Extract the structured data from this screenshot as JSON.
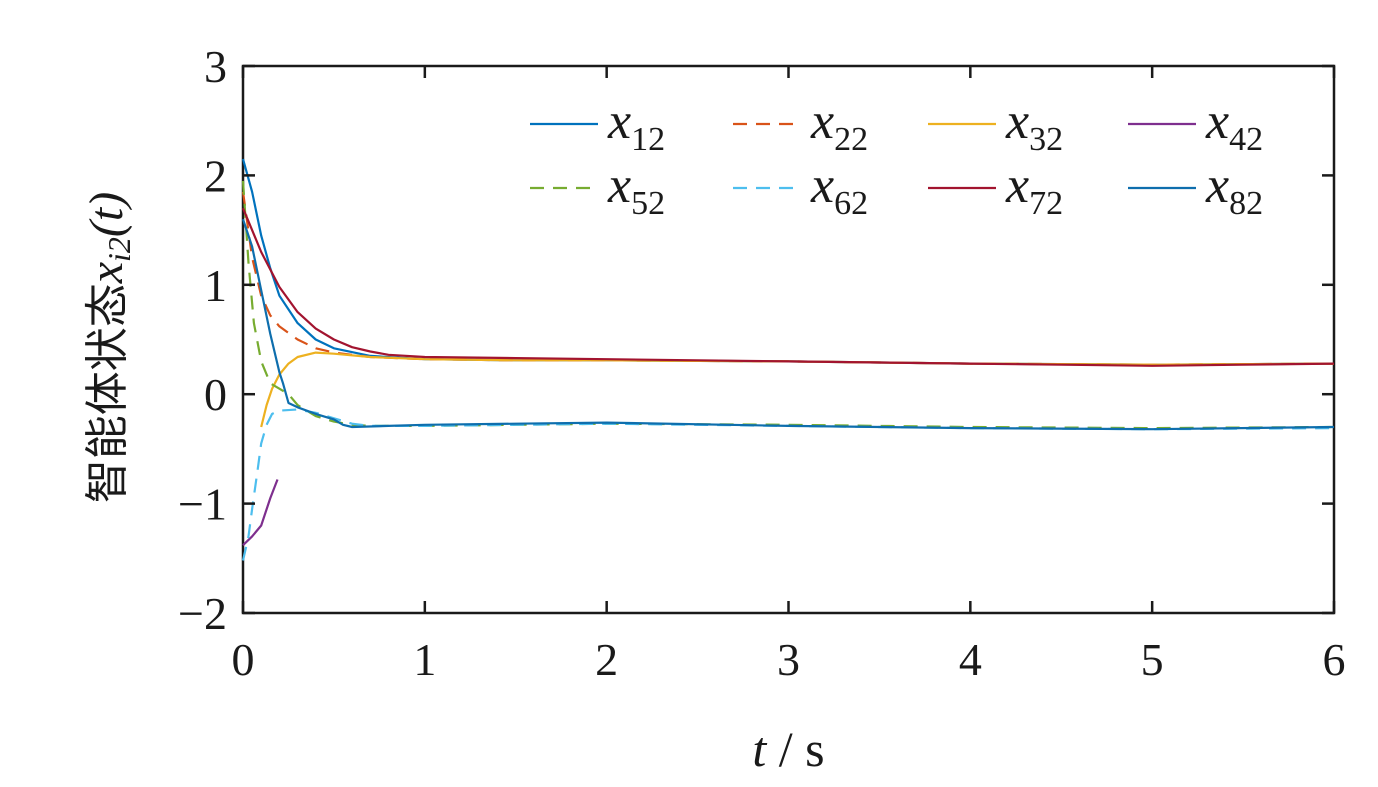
{
  "chart_data": {
    "type": "line",
    "xlabel": {
      "var": "t",
      "unit": "s"
    },
    "ylabel": {
      "prefix": "智能体状态",
      "var": "x",
      "sub": "i2",
      "arg": "(t)"
    },
    "xlim": [
      0,
      6
    ],
    "ylim": [
      -2,
      3
    ],
    "xticks": [
      0,
      1,
      2,
      3,
      4,
      5,
      6
    ],
    "yticks": [
      -2,
      -1,
      0,
      1,
      2,
      3
    ],
    "ytick_labels": [
      "−2",
      "−1",
      "0",
      "1",
      "2",
      "3"
    ],
    "grid": false,
    "legend_position": "top-right",
    "series": [
      {
        "name": "x12",
        "base": "x",
        "sub": "12",
        "color": "#0072BD",
        "dash": "solid",
        "x": [
          0,
          0.05,
          0.1,
          0.15,
          0.2,
          0.3,
          0.4,
          0.5,
          0.7,
          1.0,
          1.5,
          2.0,
          3.0,
          4.0,
          5.0,
          6.0
        ],
        "y": [
          2.15,
          1.85,
          1.45,
          1.15,
          0.9,
          0.65,
          0.5,
          0.42,
          0.35,
          0.32,
          0.31,
          0.31,
          0.3,
          0.28,
          0.27,
          0.28
        ]
      },
      {
        "name": "x22",
        "base": "x",
        "sub": "22",
        "color": "#D95319",
        "dash": "dashed",
        "x": [
          0,
          0.05,
          0.1,
          0.15,
          0.2,
          0.3,
          0.4,
          0.5,
          0.7,
          1.0,
          1.5,
          2.0,
          3.0,
          4.0,
          5.0,
          6.0
        ],
        "y": [
          1.85,
          1.25,
          0.9,
          0.72,
          0.62,
          0.5,
          0.42,
          0.38,
          0.34,
          0.32,
          0.31,
          0.31,
          0.3,
          0.28,
          0.27,
          0.28
        ]
      },
      {
        "name": "x32",
        "base": "x",
        "sub": "32",
        "color": "#EDB120",
        "dash": "solid",
        "x": [
          0.1,
          0.13,
          0.16,
          0.2,
          0.25,
          0.3,
          0.4,
          0.5,
          0.7,
          1.0,
          1.5,
          2.0,
          3.0,
          4.0,
          5.0,
          6.0
        ],
        "y": [
          -0.3,
          -0.1,
          0.05,
          0.18,
          0.28,
          0.34,
          0.38,
          0.37,
          0.34,
          0.32,
          0.31,
          0.31,
          0.3,
          0.28,
          0.27,
          0.28
        ]
      },
      {
        "name": "x42",
        "base": "x",
        "sub": "42",
        "color": "#7E2F8E",
        "dash": "solid",
        "x": [
          0.0,
          0.05,
          0.1,
          0.15,
          0.19
        ],
        "y": [
          -1.38,
          -1.3,
          -1.2,
          -0.95,
          -0.78
        ]
      },
      {
        "name": "x52",
        "base": "x",
        "sub": "52",
        "color": "#77AC30",
        "dash": "dashed",
        "x": [
          0,
          0.03,
          0.06,
          0.1,
          0.15,
          0.2,
          0.25,
          0.3,
          0.4,
          0.5,
          0.6,
          0.7,
          1.0,
          1.5,
          2.0,
          3.0,
          4.0,
          5.0,
          6.0
        ],
        "y": [
          1.95,
          1.2,
          0.65,
          0.3,
          0.1,
          0.05,
          0.0,
          -0.1,
          -0.2,
          -0.25,
          -0.28,
          -0.29,
          -0.29,
          -0.28,
          -0.27,
          -0.28,
          -0.3,
          -0.31,
          -0.3
        ]
      },
      {
        "name": "x62",
        "base": "x",
        "sub": "62",
        "color": "#4DBEEE",
        "dash": "dashed",
        "x": [
          0.0,
          0.03,
          0.05,
          0.08,
          0.1,
          0.13,
          0.16,
          0.2,
          0.3,
          0.4,
          0.5,
          0.6,
          0.7,
          1.0,
          1.5,
          2.0,
          3.0,
          4.0,
          5.0,
          6.0
        ],
        "y": [
          -1.52,
          -1.3,
          -1.05,
          -0.7,
          -0.45,
          -0.28,
          -0.18,
          -0.15,
          -0.14,
          -0.17,
          -0.22,
          -0.27,
          -0.29,
          -0.29,
          -0.28,
          -0.27,
          -0.29,
          -0.31,
          -0.32,
          -0.31
        ]
      },
      {
        "name": "x72",
        "base": "x",
        "sub": "72",
        "color": "#A2142F",
        "dash": "solid",
        "x": [
          0,
          0.05,
          0.1,
          0.2,
          0.3,
          0.4,
          0.5,
          0.6,
          0.7,
          0.8,
          1.0,
          1.5,
          2.0,
          2.5,
          3.0,
          3.5,
          4.0,
          4.5,
          5.0,
          5.5,
          6.0
        ],
        "y": [
          1.7,
          1.5,
          1.3,
          0.98,
          0.75,
          0.6,
          0.5,
          0.43,
          0.39,
          0.36,
          0.34,
          0.33,
          0.32,
          0.31,
          0.3,
          0.29,
          0.28,
          0.27,
          0.26,
          0.27,
          0.28
        ]
      },
      {
        "name": "x82",
        "base": "x",
        "sub": "82",
        "color": "#0E6EAD",
        "dash": "solid",
        "x": [
          0.0,
          0.05,
          0.1,
          0.15,
          0.2,
          0.22,
          0.25,
          0.3,
          0.4,
          0.5,
          0.55,
          0.6,
          0.8,
          1.0,
          1.5,
          2.0,
          3.0,
          4.0,
          5.0,
          6.0
        ],
        "y": [
          1.6,
          1.35,
          0.95,
          0.55,
          0.2,
          0.1,
          -0.08,
          -0.12,
          -0.18,
          -0.23,
          -0.28,
          -0.3,
          -0.29,
          -0.28,
          -0.27,
          -0.26,
          -0.29,
          -0.31,
          -0.32,
          -0.3
        ]
      }
    ]
  }
}
